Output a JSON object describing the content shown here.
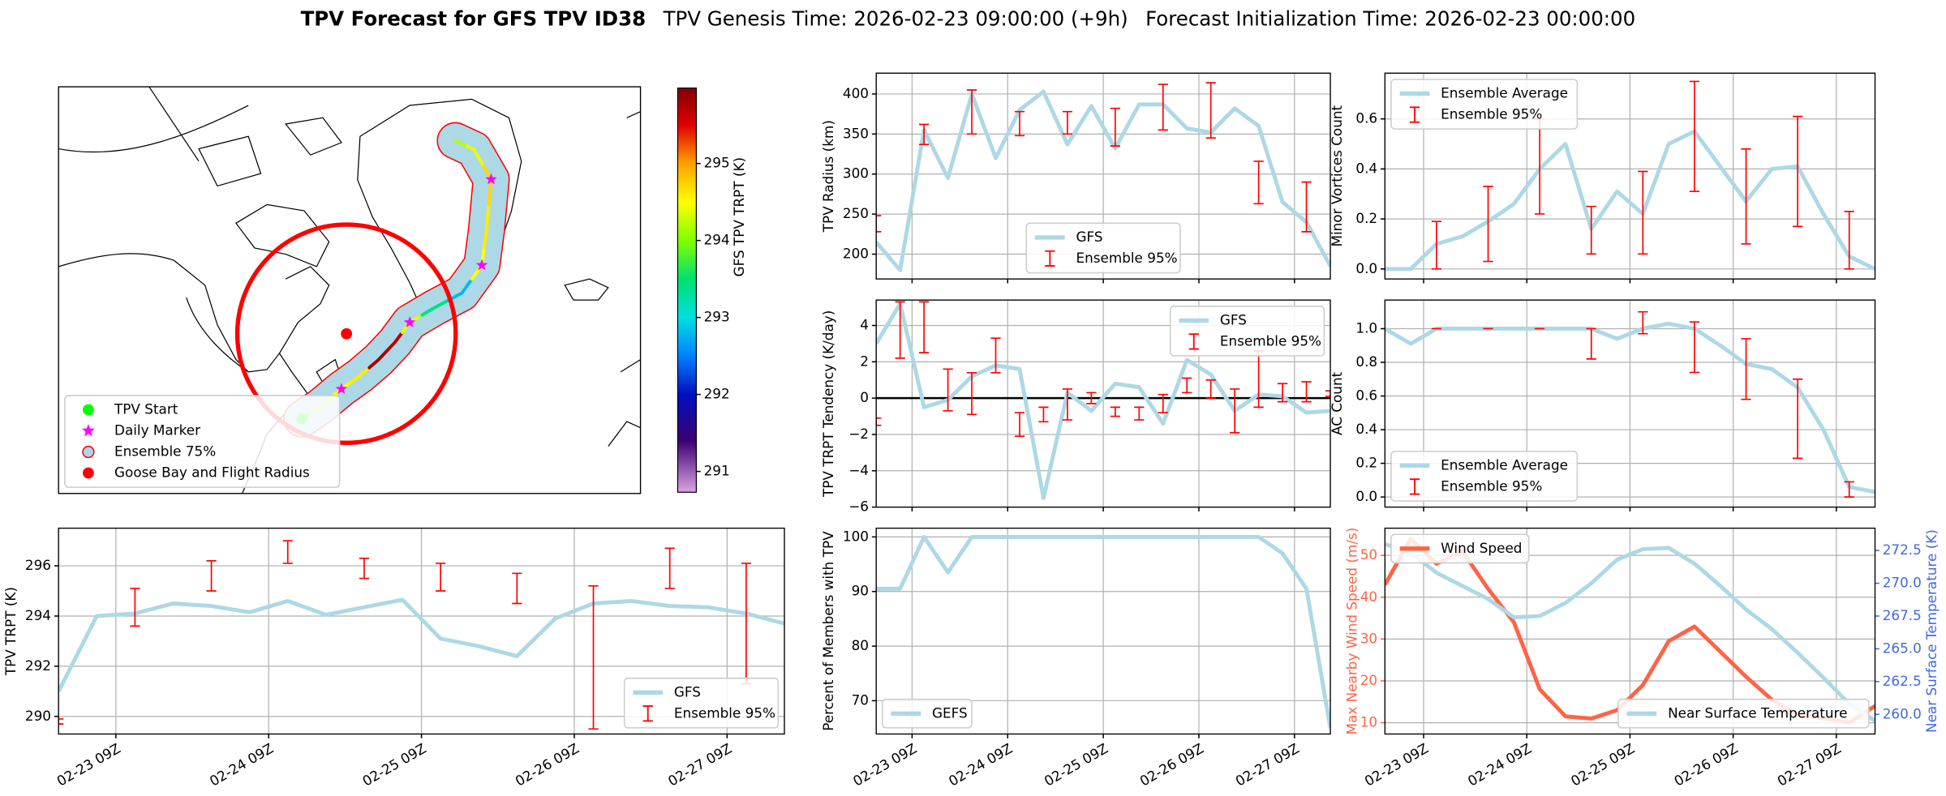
{
  "figure_title": {
    "bold": "TPV Forecast for GFS TPV ID38",
    "genesis": "TPV Genesis Time: 2026-02-23 09:00:00 (+9h)",
    "init": "Forecast Initialization Time: 2026-02-23 00:00:00"
  },
  "chart_data": [
    {
      "type": "map",
      "xlim": [
        -122.3,
        2.8
      ],
      "ylim": [
        29.3,
        90.4
      ],
      "track": {
        "lon": [
          -70,
          -66,
          -61.5,
          -57.5,
          -53.5,
          -50,
          -46.8,
          -41.5,
          -35.6,
          -31.3,
          -30.3,
          -29.3,
          -33,
          -37
        ],
        "lat": [
          40.5,
          42.4,
          45,
          47,
          49.4,
          52,
          55,
          57.2,
          59.4,
          63.6,
          68.9,
          76.5,
          81,
          82.3
        ],
        "trpt": [
          293.8,
          294.2,
          294.5,
          294.6,
          295.8,
          295.7,
          294.4,
          293.4,
          292.8,
          294.5,
          294.6,
          294.7,
          294.4,
          294.2
        ]
      },
      "start": {
        "name": "TPV Start",
        "color": "lime"
      },
      "markers": {
        "name": "Daily Marker",
        "color": "magenta",
        "lon": [
          -61.5,
          -46.8,
          -31.3,
          -29.3
        ],
        "lat": [
          45,
          55,
          63.6,
          76.5
        ]
      },
      "ensemble_area": {
        "name": "Ensemble 75%",
        "color": "lightblue",
        "edge": "red"
      },
      "goose_bay": {
        "name": "Goose Bay and Flight Radius",
        "color": "red",
        "lon": -60.4,
        "lat": 53.3
      },
      "legend": "lower left",
      "colorbar": {
        "label": "GFS TPV TRPT (K)",
        "clim": [
          290.73,
          295.98
        ],
        "ticks": [
          291,
          292,
          293,
          294,
          295
        ],
        "colormap": [
          [
            290.73,
            "#dca3e3"
          ],
          [
            291.4,
            "#3c0070"
          ],
          [
            292.0,
            "#0010c0"
          ],
          [
            292.5,
            "#0080ff"
          ],
          [
            293.0,
            "#00e0e0"
          ],
          [
            293.5,
            "#00e070"
          ],
          [
            294.0,
            "#80ff00"
          ],
          [
            294.5,
            "#ffff00"
          ],
          [
            295.0,
            "#ffa000"
          ],
          [
            295.5,
            "#e00000"
          ],
          [
            295.98,
            "#800000"
          ]
        ]
      }
    },
    {
      "type": "line",
      "ylabel": "TPV TRPT (K)",
      "xlim": [
        -9,
        105
      ],
      "ylim": [
        289.3,
        297.5
      ],
      "yticks": [
        290,
        292,
        294,
        296
      ],
      "xticks": [
        {
          "value": 0,
          "label": "02-23 09Z"
        },
        {
          "value": 24,
          "label": "02-24 09Z"
        },
        {
          "value": 48,
          "label": "02-25 09Z"
        },
        {
          "value": 72,
          "label": "02-26 09Z"
        },
        {
          "value": 96,
          "label": "02-27 09Z"
        }
      ],
      "grid": true,
      "legend": "lower right",
      "x": [
        -9,
        -3,
        3,
        9,
        15,
        21,
        27,
        33,
        39,
        45,
        51,
        57,
        63,
        69,
        75,
        81,
        87,
        93,
        99,
        105
      ],
      "series": [
        {
          "name": "GFS",
          "color": "lightblue",
          "values": [
            291.0,
            294.0,
            294.1,
            294.5,
            294.4,
            294.15,
            294.6,
            294.05,
            294.35,
            294.65,
            293.1,
            292.8,
            292.4,
            293.9,
            294.5,
            294.6,
            294.4,
            294.35,
            294.1,
            293.7
          ]
        }
      ],
      "ensemble": {
        "name": "Ensemble 95%",
        "color": "red",
        "x": [
          -9,
          3,
          15,
          27,
          39,
          51,
          63,
          75,
          87,
          99
        ],
        "low": [
          289.7,
          293.6,
          295.0,
          296.1,
          295.5,
          295.0,
          294.5,
          289.5,
          295.1,
          291.3
        ],
        "high": [
          289.9,
          295.1,
          296.2,
          297.0,
          296.3,
          296.1,
          295.7,
          295.2,
          296.7,
          296.1
        ]
      }
    },
    {
      "type": "line",
      "ylabel": "TPV Radius (km)",
      "xlim": [
        -9,
        105
      ],
      "ylim": [
        169,
        426
      ],
      "yticks": [
        200,
        250,
        300,
        350,
        400
      ],
      "xgrid": [
        0,
        24,
        48,
        72,
        96
      ],
      "grid": true,
      "legend": "lower center",
      "x": [
        -9,
        -3,
        3,
        9,
        15,
        21,
        27,
        33,
        39,
        45,
        51,
        57,
        63,
        69,
        75,
        81,
        87,
        93,
        99,
        105
      ],
      "series": [
        {
          "name": "GFS",
          "color": "lightblue",
          "values": [
            215,
            180,
            355,
            295,
            400,
            320,
            380,
            403,
            337,
            385,
            332,
            387,
            387,
            357,
            352,
            382,
            360,
            265,
            240,
            185
          ]
        }
      ],
      "ensemble": {
        "name": "Ensemble 95%",
        "color": "red",
        "x": [
          -9,
          3,
          15,
          27,
          39,
          51,
          63,
          75,
          87,
          99
        ],
        "low": [
          228,
          337,
          350,
          348,
          350,
          335,
          355,
          345,
          263,
          228
        ],
        "high": [
          248,
          362,
          405,
          378,
          378,
          382,
          412,
          414,
          316,
          290
        ]
      }
    },
    {
      "type": "line",
      "ylabel": "TPV TRPT Tendency (K/day)",
      "xlim": [
        -9,
        105
      ],
      "ylim": [
        -6,
        5.4
      ],
      "yticks": [
        {
          "value": -6,
          "label": "−6"
        },
        {
          "value": -4,
          "label": "−4"
        },
        {
          "value": -2,
          "label": "−2"
        },
        0,
        2,
        4
      ],
      "xgrid": [
        0,
        24,
        48,
        72,
        96
      ],
      "grid": true,
      "zero_line": true,
      "legend": "upper right",
      "x": [
        -9,
        -3,
        3,
        9,
        15,
        21,
        27,
        33,
        39,
        45,
        51,
        57,
        63,
        69,
        75,
        81,
        87,
        93,
        99,
        105
      ],
      "series": [
        {
          "name": "GFS",
          "color": "lightblue",
          "values": [
            3.0,
            5.2,
            -0.5,
            -0.1,
            1.2,
            1.8,
            1.6,
            -5.5,
            0.3,
            -0.7,
            0.8,
            0.6,
            -1.4,
            2.1,
            1.3,
            -0.7,
            0.2,
            0.1,
            -0.8,
            -0.7
          ]
        }
      ],
      "ensemble": {
        "name": "Ensemble 95%",
        "color": "red",
        "x": [
          -9,
          -3,
          3,
          9,
          15,
          21,
          27,
          33,
          39,
          45,
          51,
          57,
          63,
          69,
          75,
          81,
          87,
          93,
          99,
          105
        ],
        "low": [
          -1.5,
          2.2,
          2.5,
          -0.7,
          -0.9,
          1.4,
          -2.1,
          -1.3,
          -1.2,
          -0.3,
          -1.0,
          -1.2,
          -0.8,
          0.3,
          0.0,
          -1.9,
          -0.5,
          -0.2,
          -0.2,
          0.1
        ],
        "high": [
          -1.1,
          5.3,
          5.3,
          1.6,
          1.4,
          3.3,
          -0.8,
          -0.5,
          0.5,
          0.3,
          -0.5,
          -0.5,
          0.2,
          1.1,
          1.0,
          0.5,
          2.6,
          0.8,
          0.9,
          0.4
        ]
      }
    },
    {
      "type": "line",
      "ylabel": "Percent of Members with TPV",
      "xlim": [
        -9,
        105
      ],
      "ylim": [
        63.9,
        101.6
      ],
      "yticks": [
        70,
        80,
        90,
        100
      ],
      "xticks": [
        {
          "value": 0,
          "label": "02-23 09Z"
        },
        {
          "value": 24,
          "label": "02-24 09Z"
        },
        {
          "value": 48,
          "label": "02-25 09Z"
        },
        {
          "value": 72,
          "label": "02-26 09Z"
        },
        {
          "value": 96,
          "label": "02-27 09Z"
        }
      ],
      "grid": true,
      "legend": "lower left",
      "x": [
        -9,
        -3,
        3,
        9,
        15,
        21,
        27,
        33,
        39,
        45,
        51,
        57,
        63,
        69,
        75,
        81,
        87,
        93,
        99,
        105
      ],
      "series": [
        {
          "name": "GEFS",
          "color": "lightblue",
          "values": [
            90.5,
            90.5,
            100,
            93.5,
            100,
            100,
            100,
            100,
            100,
            100,
            100,
            100,
            100,
            100,
            100,
            100,
            100,
            97,
            90.5,
            65
          ]
        }
      ]
    },
    {
      "type": "line",
      "ylabel": "Minor Vortices Count",
      "xlim": [
        -9,
        105
      ],
      "ylim": [
        -0.04,
        0.783
      ],
      "yticks": [
        {
          "value": 0,
          "label": "0.0"
        },
        0.2,
        0.4,
        0.6
      ],
      "xgrid": [
        0,
        24,
        48,
        72,
        96
      ],
      "grid": true,
      "legend": "upper left",
      "x": [
        -9,
        -3,
        3,
        9,
        15,
        21,
        27,
        33,
        39,
        45,
        51,
        57,
        63,
        69,
        75,
        81,
        87,
        93,
        99,
        105
      ],
      "series": [
        {
          "name": "Ensemble Average",
          "color": "lightblue",
          "values": [
            0.0,
            0.0,
            0.1,
            0.13,
            0.19,
            0.26,
            0.4,
            0.5,
            0.16,
            0.31,
            0.22,
            0.5,
            0.55,
            0.41,
            0.27,
            0.4,
            0.41,
            0.22,
            0.05,
            0.0
          ]
        }
      ],
      "ensemble": {
        "name": "Ensemble 95%",
        "color": "red",
        "x": [
          3,
          15,
          27,
          39,
          51,
          63,
          75,
          87,
          99
        ],
        "low": [
          0.0,
          0.03,
          0.22,
          0.06,
          0.06,
          0.31,
          0.1,
          0.17,
          0.0
        ],
        "high": [
          0.19,
          0.33,
          0.6,
          0.25,
          0.39,
          0.75,
          0.48,
          0.61,
          0.23
        ]
      }
    },
    {
      "type": "line",
      "ylabel": "AC Count",
      "xlim": [
        -9,
        105
      ],
      "ylim": [
        -0.06,
        1.17
      ],
      "yticks": [
        {
          "value": 0,
          "label": "0.0"
        },
        0.2,
        0.4,
        0.6,
        0.8,
        {
          "value": 1,
          "label": "1.0"
        }
      ],
      "xgrid": [
        0,
        24,
        48,
        72,
        96
      ],
      "grid": true,
      "legend": "lower left",
      "x": [
        -9,
        -3,
        3,
        9,
        15,
        21,
        27,
        33,
        39,
        45,
        51,
        57,
        63,
        69,
        75,
        81,
        87,
        93,
        99,
        105
      ],
      "series": [
        {
          "name": "Ensemble Average",
          "color": "lightblue",
          "values": [
            1.0,
            0.91,
            1.0,
            1.0,
            1.0,
            1.0,
            1.0,
            1.0,
            1.0,
            0.94,
            1.0,
            1.03,
            1.0,
            0.9,
            0.79,
            0.76,
            0.65,
            0.4,
            0.06,
            0.03
          ]
        }
      ],
      "ensemble": {
        "name": "Ensemble 95%",
        "color": "red",
        "x": [
          3,
          15,
          27,
          39,
          51,
          63,
          75,
          87,
          99
        ],
        "low": [
          1.0,
          1.0,
          1.0,
          0.82,
          0.97,
          0.74,
          0.58,
          0.23,
          0.0
        ],
        "high": [
          1.0,
          1.0,
          1.0,
          1.0,
          1.1,
          1.04,
          0.94,
          0.7,
          0.09
        ]
      }
    },
    {
      "type": "line",
      "ylabel": "Max Nearby Wind Speed (m/s)",
      "y_color": "tomato",
      "y2label": "Near Surface Temperature (K)",
      "y2_color": "royalblue",
      "xlim": [
        -9,
        105
      ],
      "ylim": [
        7.3,
        56.5
      ],
      "yticks": [
        10,
        20,
        30,
        40,
        50
      ],
      "y2lim": [
        258.5,
        274.2
      ],
      "y2ticks": [
        {
          "value": 260,
          "label": "260.0"
        },
        262.5,
        {
          "value": 265,
          "label": "265.0"
        },
        267.5,
        {
          "value": 270,
          "label": "270.0"
        },
        272.5
      ],
      "xticks": [
        {
          "value": 0,
          "label": "02-23 09Z"
        },
        {
          "value": 24,
          "label": "02-24 09Z"
        },
        {
          "value": 48,
          "label": "02-25 09Z"
        },
        {
          "value": 72,
          "label": "02-26 09Z"
        },
        {
          "value": 96,
          "label": "02-27 09Z"
        }
      ],
      "grid": true,
      "x": [
        -9,
        -3,
        3,
        9,
        15,
        21,
        27,
        33,
        39,
        45,
        51,
        57,
        63,
        69,
        75,
        81,
        87,
        93,
        99,
        105
      ],
      "series": [
        {
          "name": "Wind Speed",
          "color": "tomato",
          "axis": "y",
          "legend": "upper left",
          "values": [
            43,
            54,
            48,
            51,
            42,
            34,
            18,
            11.5,
            11,
            13,
            19,
            29.5,
            33,
            27,
            21,
            15.5,
            12,
            11,
            10,
            14
          ]
        },
        {
          "name": "Near Surface Temperature",
          "color": "lightblue",
          "axis": "y2",
          "legend": "lower right",
          "values": [
            273.0,
            272.3,
            270.8,
            269.8,
            268.8,
            267.4,
            267.5,
            268.5,
            270.0,
            271.8,
            272.6,
            272.7,
            271.5,
            269.8,
            268.0,
            266.5,
            264.7,
            262.8,
            260.8,
            259.5
          ]
        }
      ]
    }
  ]
}
